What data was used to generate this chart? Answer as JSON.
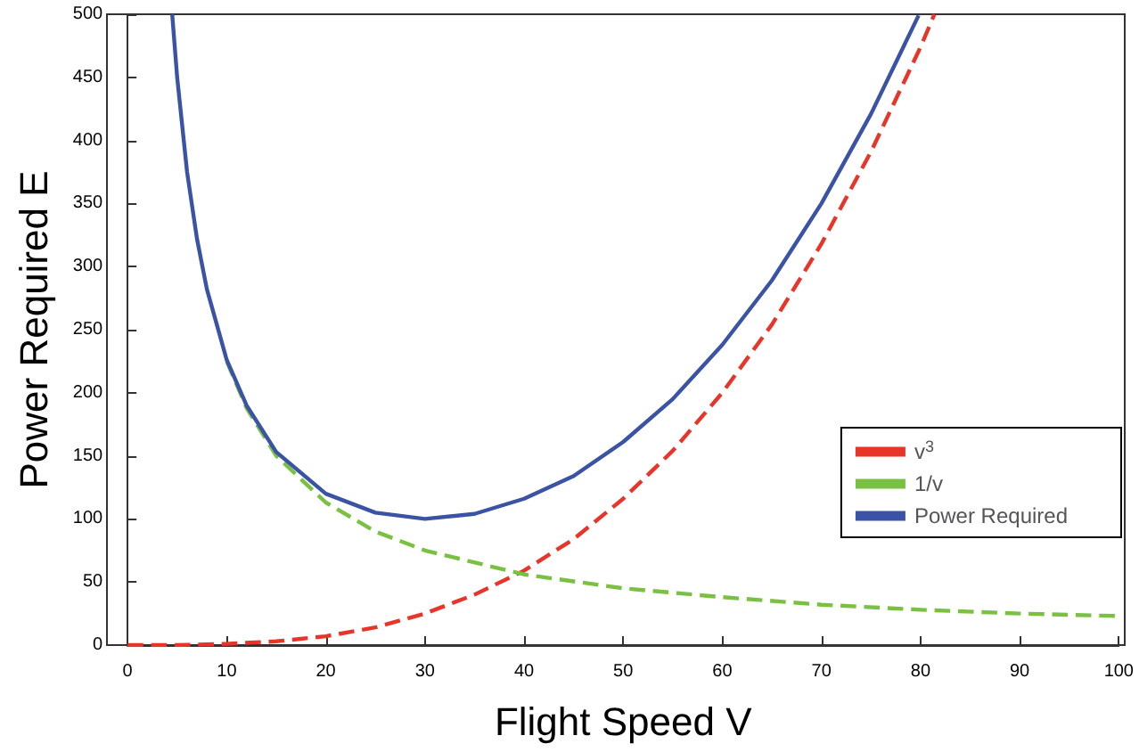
{
  "chart_data": {
    "type": "line",
    "xlabel": "Flight Speed V",
    "ylabel": "Power Required E",
    "xlim": [
      0,
      100
    ],
    "ylim": [
      0,
      500
    ],
    "xticks": [
      0,
      10,
      20,
      30,
      40,
      50,
      60,
      70,
      80,
      90,
      100
    ],
    "yticks": [
      0,
      50,
      100,
      150,
      200,
      250,
      300,
      350,
      400,
      450,
      500
    ],
    "grid": false,
    "legend": "right",
    "marker": "none",
    "series": [
      {
        "name": "v$^{3}$",
        "color": "#e8352a",
        "line_style": "dashed",
        "x": [
          0,
          5,
          10,
          15,
          20,
          25,
          30,
          35,
          40,
          45,
          50,
          55,
          60,
          65,
          70,
          75,
          80,
          81.4
        ],
        "values": [
          0,
          0,
          1,
          3,
          7,
          14,
          25,
          40,
          59,
          84,
          116,
          154,
          200,
          254,
          318,
          391,
          474,
          500
        ]
      },
      {
        "name": "1/v",
        "color": "#7ac143",
        "line_style": "dashed",
        "x": [
          10,
          12,
          15,
          20,
          25,
          30,
          40,
          50,
          60,
          70,
          80,
          90,
          100
        ],
        "values": [
          225,
          188,
          150,
          113,
          90,
          75,
          56,
          45,
          38,
          32,
          28,
          25,
          23
        ]
      },
      {
        "name": "Power Required",
        "color": "#3a53a4",
        "line_style": "solid",
        "x": [
          4.5,
          5,
          6,
          7,
          8,
          10,
          12,
          15,
          20,
          25,
          30,
          35,
          40,
          45,
          50,
          55,
          60,
          65,
          70,
          75,
          79.8
        ],
        "values": [
          500,
          450,
          375,
          322,
          282,
          226,
          190,
          153,
          120,
          105,
          100,
          104,
          116,
          134,
          161,
          195,
          238,
          289,
          350,
          421,
          499
        ]
      }
    ]
  }
}
